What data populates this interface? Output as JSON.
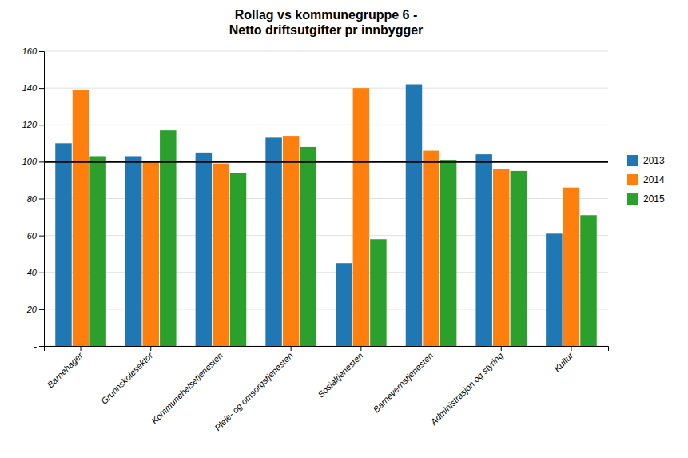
{
  "chart_data": {
    "type": "bar",
    "title": "Rollag vs kommunegruppe 6 -\nNetto driftsutgifter pr innbygger",
    "categories": [
      "Barnehager",
      "Grunnskolesektor",
      "Kommunehelsetjenesten",
      "Pleie- og omsorgstjenesten",
      "Sosialtjenesten",
      "Barnevernstjenesten",
      "Administrasjon og styring",
      "Kultur"
    ],
    "series": [
      {
        "name": "2013",
        "values": [
          110,
          103,
          105,
          113,
          45,
          142,
          104,
          61
        ]
      },
      {
        "name": "2014",
        "values": [
          139,
          100,
          99,
          114,
          140,
          106,
          96,
          86
        ]
      },
      {
        "name": "2015",
        "values": [
          103,
          117,
          94,
          108,
          58,
          101,
          95,
          71
        ]
      }
    ],
    "reference_line": 100,
    "ylim": [
      0,
      160
    ],
    "yticks": [
      {
        "value": 0,
        "label": "-"
      },
      20,
      40,
      60,
      80,
      100,
      120,
      140,
      160
    ],
    "grid": true,
    "legend": "right"
  }
}
